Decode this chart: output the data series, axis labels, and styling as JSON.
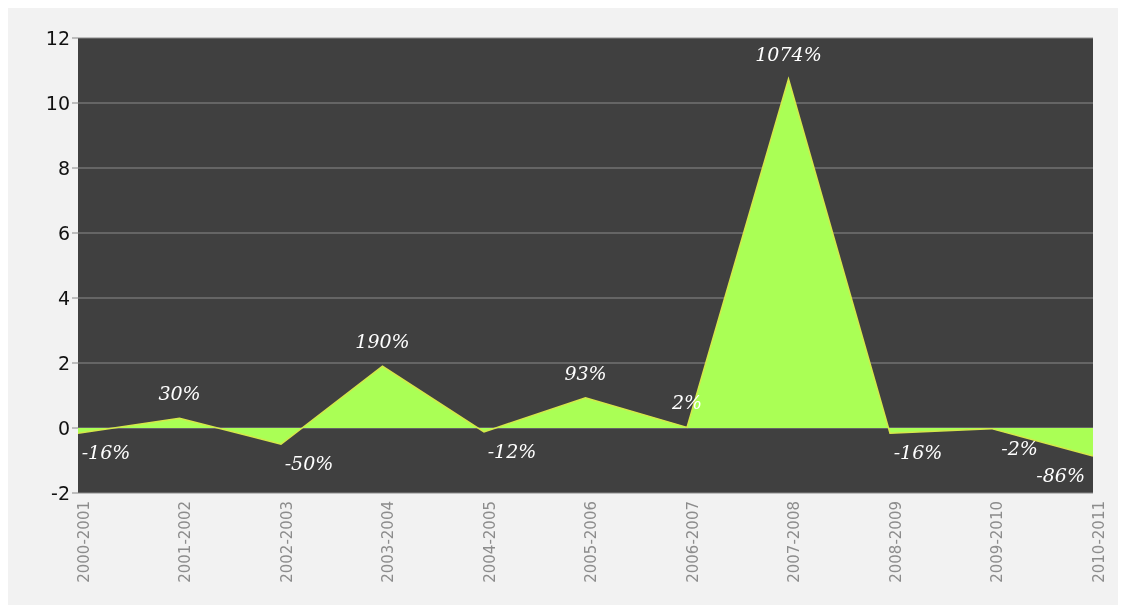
{
  "chart_data": {
    "type": "area",
    "categories": [
      "2000-2001",
      "2001-2002",
      "2002-2003",
      "2003-2004",
      "2004-2005",
      "2005-2006",
      "2006-2007",
      "2007-2008",
      "2008-2009",
      "2009-2010",
      "2010-2011"
    ],
    "series": [
      {
        "color": "#aaff55",
        "values": [
          -0.16,
          0.3,
          -0.5,
          1.9,
          -0.12,
          0.93,
          0.02,
          10.74,
          -0.16,
          -0.02,
          -0.86
        ],
        "value_labels": [
          "-16%",
          "30%",
          "-50%",
          "190%",
          "-12%",
          "93%",
          "2%",
          "1074%",
          "-16%",
          "-2%",
          "-86%"
        ]
      }
    ],
    "ylim": [
      -2,
      12
    ],
    "yticks": [
      -2,
      0,
      2,
      4,
      6,
      8,
      10,
      12
    ],
    "grid": "y",
    "legend": false
  }
}
